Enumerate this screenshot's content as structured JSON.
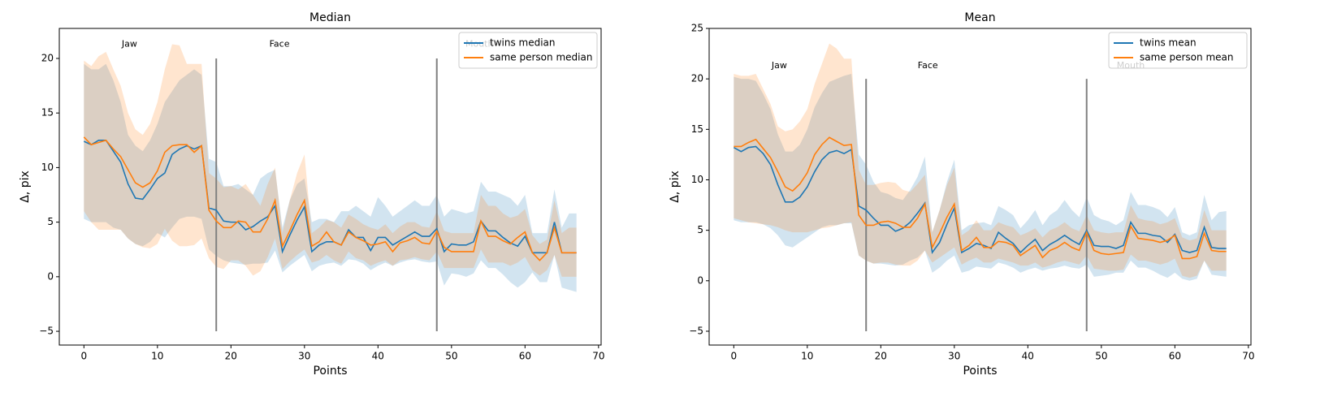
{
  "chart_data": [
    {
      "type": "line",
      "title": "Median",
      "xlabel": "Points",
      "ylabel": "Δ, pix",
      "legend": "upper right",
      "x": [
        0,
        1,
        2,
        3,
        4,
        5,
        6,
        7,
        8,
        9,
        10,
        11,
        12,
        13,
        14,
        15,
        16,
        17,
        18,
        19,
        20,
        21,
        22,
        23,
        24,
        25,
        26,
        27,
        28,
        29,
        30,
        31,
        32,
        33,
        34,
        35,
        36,
        37,
        38,
        39,
        40,
        41,
        42,
        43,
        44,
        45,
        46,
        47,
        48,
        49,
        50,
        51,
        52,
        53,
        54,
        55,
        56,
        57,
        58,
        59,
        60,
        61,
        62,
        63,
        64,
        65,
        66,
        67
      ],
      "xlim": [
        -3.35,
        70.35
      ],
      "xticks": [
        0,
        10,
        20,
        30,
        40,
        50,
        60,
        70
      ],
      "ylim": [
        -6.26,
        22.75
      ],
      "yticks": [
        {
          "value": -5,
          "label": "−5"
        },
        0,
        5,
        10,
        15,
        20
      ],
      "series": [
        {
          "name": "twins median",
          "color": "#1f77b4",
          "values": [
            12.4,
            12.1,
            12.5,
            12.5,
            11.5,
            10.5,
            8.5,
            7.2,
            7.1,
            8,
            9,
            9.5,
            11.2,
            11.7,
            12,
            11.7,
            12,
            6.3,
            6.1,
            5.1,
            5,
            5,
            4.3,
            4.6,
            5.1,
            5.5,
            6.5,
            2.3,
            3.8,
            5.2,
            6.4,
            2.3,
            2.9,
            3.2,
            3.2,
            2.9,
            4.3,
            3.6,
            3.6,
            2.4,
            3.6,
            3.6,
            2.9,
            3.3,
            3.7,
            4.1,
            3.7,
            3.7,
            4.4,
            2.3,
            3,
            2.9,
            2.9,
            3.2,
            5.1,
            4.2,
            4.2,
            3.6,
            3.1,
            2.8,
            3.7,
            2.2,
            2.2,
            2.2,
            5,
            2.2,
            2.2,
            2.2
          ],
          "band_upper": [
            19.5,
            19,
            19,
            19.5,
            18,
            16,
            13,
            12,
            11.5,
            12.5,
            14,
            16,
            17,
            18,
            18.5,
            19,
            18.5,
            10.8,
            10.5,
            8.3,
            8.3,
            8.5,
            8,
            7.5,
            9,
            9.5,
            9.8,
            4.5,
            7,
            8.5,
            9,
            5,
            5.3,
            5.3,
            5,
            6,
            6,
            6.5,
            6,
            5.5,
            7.3,
            6.5,
            5.5,
            6,
            6.5,
            7,
            6.5,
            6.5,
            7.5,
            5.5,
            6.2,
            6,
            5.8,
            6,
            8.7,
            7.8,
            7.8,
            7.5,
            7.2,
            6.5,
            7.5,
            4,
            4,
            4,
            8,
            4.5,
            5.8,
            5.8
          ],
          "band_lower": [
            5.3,
            5,
            5,
            5,
            4.5,
            4.3,
            3.5,
            3,
            2.8,
            3.2,
            4,
            3.6,
            4.5,
            5.3,
            5.5,
            5.5,
            5.3,
            2.5,
            1.9,
            1.5,
            1.3,
            1.2,
            1.1,
            1.2,
            1.2,
            1.3,
            2.4,
            0.4,
            1,
            1.5,
            2,
            0.5,
            1,
            1.2,
            1.3,
            1,
            1.6,
            1.5,
            1.2,
            0.6,
            1,
            1.3,
            1,
            1.3,
            1.5,
            1.6,
            1.4,
            1.3,
            1.4,
            -0.8,
            0.3,
            0.2,
            0,
            0.3,
            1.5,
            0.8,
            0.8,
            0.2,
            -0.5,
            -1,
            -0.5,
            0.4,
            -0.5,
            -0.5,
            2,
            -1,
            -1.2,
            -1.4
          ]
        },
        {
          "name": "same person median",
          "color": "#ff7f0e",
          "values": [
            12.8,
            12.1,
            12.3,
            12.5,
            11.7,
            11,
            9.8,
            8.6,
            8.2,
            8.6,
            9.7,
            11.4,
            12,
            12.1,
            12.1,
            11.4,
            12,
            6.1,
            5.1,
            4.5,
            4.5,
            5.1,
            5,
            4.1,
            4.1,
            5.3,
            7,
            2.8,
            4.2,
            5.7,
            7,
            2.8,
            3.2,
            4.1,
            3.2,
            2.9,
            4.1,
            3.6,
            3.3,
            2.9,
            3,
            3.2,
            2.3,
            3.1,
            3.3,
            3.6,
            3.1,
            3,
            4.2,
            2.7,
            2.3,
            2.3,
            2.3,
            2.3,
            5.1,
            3.7,
            3.7,
            3.3,
            3,
            3.6,
            4.1,
            2.2,
            1.5,
            2.2,
            4.5,
            2.2,
            2.2,
            2.2
          ],
          "band_upper": [
            19.8,
            19.3,
            20.2,
            20.6,
            19,
            17.5,
            15,
            13.5,
            13,
            14,
            16,
            19,
            21.3,
            21.2,
            19.5,
            19.5,
            19.5,
            9.5,
            9,
            8.2,
            8.3,
            8,
            8.5,
            7.5,
            6.5,
            8.5,
            10,
            4,
            7,
            9.5,
            11.2,
            4,
            4.5,
            5.2,
            5,
            4.5,
            5.7,
            5.3,
            4.8,
            4.5,
            4.3,
            4.8,
            4,
            4.6,
            5,
            5,
            4.6,
            4.5,
            6,
            4.2,
            4,
            4,
            4,
            4,
            7.5,
            6.5,
            6.5,
            5.8,
            5.4,
            5.6,
            6.2,
            3.8,
            3,
            3.4,
            7,
            4,
            4.5,
            4.5
          ],
          "band_lower": [
            6,
            5,
            4.3,
            4.3,
            4.3,
            4.3,
            3.5,
            3,
            2.7,
            2.6,
            3,
            4.4,
            3.3,
            2.8,
            2.8,
            2.9,
            3.5,
            1.7,
            0.9,
            0.7,
            1.5,
            1.5,
            1,
            0.1,
            0.5,
            1.8,
            3.5,
            0.7,
            1.4,
            2,
            2.5,
            1.3,
            1.5,
            2,
            1.5,
            1.2,
            2.3,
            1.7,
            1.5,
            1,
            1.3,
            1.5,
            1,
            1.5,
            1.6,
            1.8,
            1.6,
            1.5,
            2.3,
            0.8,
            0.8,
            0.8,
            0.8,
            0.8,
            2.5,
            1.3,
            1.3,
            1.3,
            1,
            1.3,
            1.8,
            0.6,
            0.1,
            0.6,
            2,
            0,
            0,
            0
          ]
        }
      ],
      "vlines": [
        {
          "x": 18,
          "ymin": -5,
          "ymax": 20
        },
        {
          "x": 48,
          "ymin": -5,
          "ymax": 20
        }
      ],
      "annotations": [
        {
          "text": "Jaw",
          "x": 6.2,
          "y": 21.3
        },
        {
          "text": "Face",
          "x": 26.6,
          "y": 21.3
        },
        {
          "text": "Mouth",
          "x": 53.8,
          "y": 21.3
        }
      ]
    },
    {
      "type": "line",
      "title": "Mean",
      "xlabel": "Points",
      "ylabel": "Δ, pix",
      "legend": "upper right",
      "x": [
        0,
        1,
        2,
        3,
        4,
        5,
        6,
        7,
        8,
        9,
        10,
        11,
        12,
        13,
        14,
        15,
        16,
        17,
        18,
        19,
        20,
        21,
        22,
        23,
        24,
        25,
        26,
        27,
        28,
        29,
        30,
        31,
        32,
        33,
        34,
        35,
        36,
        37,
        38,
        39,
        40,
        41,
        42,
        43,
        44,
        45,
        46,
        47,
        48,
        49,
        50,
        51,
        52,
        53,
        54,
        55,
        56,
        57,
        58,
        59,
        60,
        61,
        62,
        63,
        64,
        65,
        66,
        67
      ],
      "xlim": [
        -3.35,
        70.35
      ],
      "xticks": [
        0,
        10,
        20,
        30,
        40,
        50,
        60,
        70
      ],
      "ylim": [
        -6.37,
        25.0
      ],
      "yticks": [
        {
          "value": -5,
          "label": "−5"
        },
        0,
        5,
        10,
        15,
        20,
        25
      ],
      "series": [
        {
          "name": "twins mean",
          "color": "#1f77b4",
          "values": [
            13.2,
            12.8,
            13.2,
            13.3,
            12.6,
            11.5,
            9.5,
            7.8,
            7.8,
            8.3,
            9.3,
            10.8,
            12,
            12.7,
            12.9,
            12.6,
            13,
            7.4,
            7,
            6.2,
            5.5,
            5.5,
            4.9,
            5.2,
            5.8,
            6.7,
            7.7,
            2.8,
            3.8,
            5.6,
            7.2,
            2.8,
            3.2,
            3.7,
            3.5,
            3.2,
            4.8,
            4.2,
            3.7,
            2.8,
            3.5,
            4.1,
            3,
            3.6,
            4,
            4.5,
            4,
            3.6,
            5,
            3.5,
            3.4,
            3.4,
            3.2,
            3.5,
            5.8,
            4.7,
            4.7,
            4.5,
            4.4,
            3.8,
            4.6,
            3,
            2.8,
            3,
            5.3,
            3.3,
            3.2,
            3.2
          ],
          "band_upper": [
            20.2,
            20,
            20,
            19.8,
            18.5,
            17,
            14.5,
            12.8,
            12.8,
            13.5,
            15,
            17.2,
            18.6,
            19.7,
            20,
            20.3,
            20.5,
            12.5,
            11.5,
            9.8,
            8.8,
            8.6,
            8.2,
            8,
            9,
            10.3,
            12.3,
            4.8,
            7,
            9.8,
            12,
            5,
            5.5,
            5.7,
            5.8,
            5.5,
            7.4,
            7,
            6.5,
            5.2,
            6,
            7,
            5.5,
            6.5,
            7,
            8,
            7,
            6.3,
            8.3,
            6.5,
            6.1,
            5.9,
            5.5,
            6,
            8.8,
            7.5,
            7.5,
            7.3,
            7,
            6.3,
            7.3,
            4.8,
            4.5,
            4.8,
            8.5,
            6,
            6.8,
            6.9
          ],
          "band_lower": [
            6,
            5.8,
            5.8,
            5.8,
            5.6,
            5.2,
            4.5,
            3.5,
            3.3,
            3.8,
            4.3,
            4.8,
            5.3,
            5.5,
            5.5,
            5.7,
            5.7,
            2.5,
            2,
            1.7,
            1.7,
            1.6,
            1.5,
            1.6,
            2,
            2.3,
            3,
            0.8,
            1.3,
            2,
            2.5,
            0.8,
            1,
            1.4,
            1.3,
            1.2,
            1.8,
            1.6,
            1.3,
            0.8,
            1.1,
            1.3,
            1,
            1.2,
            1.3,
            1.5,
            1.3,
            1.2,
            1.6,
            0.4,
            0.5,
            0.6,
            0.8,
            0.8,
            2,
            1.3,
            1.3,
            1,
            0.6,
            0.3,
            0.8,
            0.2,
            0,
            0.2,
            2,
            0.6,
            0.5,
            0.4
          ]
        },
        {
          "name": "same person mean",
          "color": "#ff7f0e",
          "values": [
            13.3,
            13.3,
            13.7,
            14,
            13.1,
            12.2,
            10.8,
            9.3,
            8.9,
            9.6,
            10.7,
            12.5,
            13.5,
            14.2,
            13.8,
            13.4,
            13.5,
            6.5,
            5.5,
            5.5,
            5.8,
            5.9,
            5.7,
            5.3,
            5.3,
            6.2,
            7.6,
            3.3,
            4.7,
            6.3,
            7.6,
            3,
            3.5,
            4.3,
            3.3,
            3.3,
            3.9,
            3.8,
            3.5,
            2.5,
            3,
            3.5,
            2.3,
            3,
            3.3,
            3.8,
            3.3,
            3,
            4.8,
            3,
            2.7,
            2.6,
            2.7,
            2.8,
            5.4,
            4.2,
            4.1,
            4,
            3.8,
            4,
            4.5,
            2.2,
            2.2,
            2.4,
            4.7,
            3,
            2.9,
            2.9
          ],
          "band_upper": [
            20.5,
            20.3,
            20.3,
            20.5,
            19,
            17.5,
            15.3,
            14.8,
            15,
            15.8,
            17,
            19.5,
            21.5,
            23.5,
            23,
            22,
            22,
            11,
            9.5,
            9.5,
            9.7,
            9.8,
            9.7,
            9,
            8.8,
            9.6,
            10.5,
            4.8,
            7,
            9.5,
            11.2,
            4.5,
            5,
            6,
            5,
            5,
            5.8,
            5.5,
            5.3,
            4.5,
            4.8,
            5.2,
            4.3,
            5,
            5.3,
            5.8,
            5.2,
            4.9,
            6.5,
            5,
            4.8,
            4.7,
            4.8,
            4.8,
            7.5,
            6.2,
            6,
            5.9,
            5.6,
            5.8,
            6.2,
            4.3,
            4,
            4.2,
            7,
            5,
            5,
            5
          ],
          "band_lower": [
            6.2,
            6,
            5.8,
            5.7,
            5.6,
            5.5,
            5.3,
            5,
            4.8,
            4.8,
            4.8,
            5,
            5.2,
            5.3,
            5.5,
            5.7,
            5.8,
            2.5,
            2,
            1.7,
            1.8,
            1.8,
            1.6,
            1.5,
            1.5,
            2,
            3,
            1.8,
            2.3,
            2.8,
            3.3,
            1.6,
            2,
            2.3,
            1.8,
            1.8,
            2.2,
            2,
            1.8,
            1.5,
            1.5,
            1.8,
            1.3,
            1.5,
            1.8,
            2,
            1.8,
            1.6,
            2.5,
            1.2,
            1.1,
            1,
            1,
            1.1,
            2.6,
            2,
            2,
            1.8,
            1.6,
            1.8,
            2.2,
            0.5,
            0.3,
            0.5,
            2,
            1,
            1,
            1
          ]
        }
      ],
      "vlines": [
        {
          "x": 18,
          "ymin": -5,
          "ymax": 20
        },
        {
          "x": 48,
          "ymin": -5,
          "ymax": 20
        }
      ],
      "annotations": [
        {
          "text": "Jaw",
          "x": 6.2,
          "y": 21.3
        },
        {
          "text": "Face",
          "x": 26.4,
          "y": 21.3
        },
        {
          "text": "Mouth",
          "x": 54,
          "y": 21.3
        }
      ]
    }
  ]
}
